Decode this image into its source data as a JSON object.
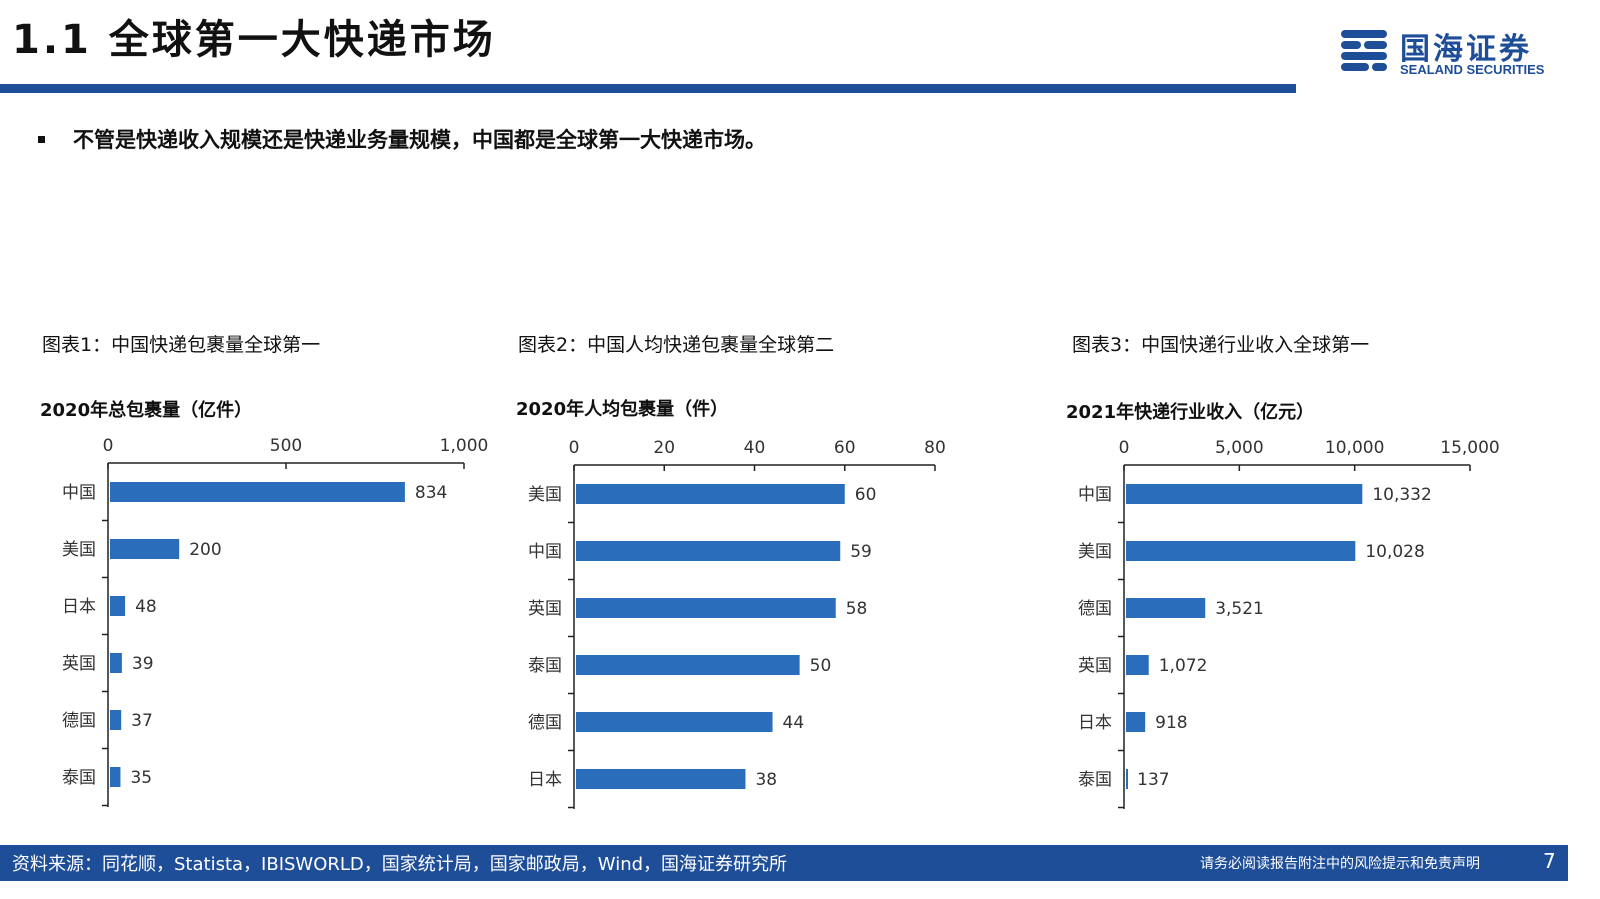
{
  "header": {
    "title": "1.1 全球第一大快递市场",
    "logo_cn": "国海证券",
    "logo_en": "SEALAND SECURITIES",
    "accent_color": "#1f4e98"
  },
  "bullet": "不管是快递收入规模还是快递业务量规模，中国都是全球第一大快递市场。",
  "chart_data": [
    {
      "type": "bar",
      "orientation": "horizontal",
      "caption": "图表1：中国快递包裹量全球第一",
      "title": "2020年总包裹量（亿件）",
      "categories": [
        "中国",
        "美国",
        "日本",
        "英国",
        "德国",
        "泰国"
      ],
      "values": [
        834,
        200,
        48,
        39,
        37,
        35
      ],
      "value_labels": [
        "834",
        "200",
        "48",
        "39",
        "37",
        "35"
      ],
      "xlim": [
        0,
        1000
      ],
      "ticks": [
        0,
        500,
        1000
      ],
      "tick_labels": [
        "0",
        "500",
        "1,000"
      ],
      "axis_position": "top",
      "bar_color": "#2a6ebb",
      "grid": false,
      "legend": "none"
    },
    {
      "type": "bar",
      "orientation": "horizontal",
      "caption": "图表2：中国人均快递包裹量全球第二",
      "title": "2020年人均包裹量（件）",
      "categories": [
        "美国",
        "中国",
        "英国",
        "泰国",
        "德国",
        "日本"
      ],
      "values": [
        60,
        59,
        58,
        50,
        44,
        38
      ],
      "value_labels": [
        "60",
        "59",
        "58",
        "50",
        "44",
        "38"
      ],
      "xlim": [
        0,
        80
      ],
      "ticks": [
        0,
        20,
        40,
        60,
        80
      ],
      "tick_labels": [
        "0",
        "20",
        "40",
        "60",
        "80"
      ],
      "axis_position": "top",
      "bar_color": "#2a6ebb",
      "grid": false,
      "legend": "none"
    },
    {
      "type": "bar",
      "orientation": "horizontal",
      "caption": "图表3：中国快递行业收入全球第一",
      "title": "2021年快递行业收入（亿元）",
      "categories": [
        "中国",
        "美国",
        "德国",
        "英国",
        "日本",
        "泰国"
      ],
      "values": [
        10332,
        10028,
        3521,
        1072,
        918,
        137
      ],
      "value_labels": [
        "10,332",
        "10,028",
        "3,521",
        "1,072",
        "918",
        "137"
      ],
      "xlim": [
        0,
        15000
      ],
      "ticks": [
        0,
        5000,
        10000,
        15000
      ],
      "tick_labels": [
        "0",
        "5,000",
        "10,000",
        "15,000"
      ],
      "axis_position": "top",
      "bar_color": "#2a6ebb",
      "grid": false,
      "legend": "none"
    }
  ],
  "footer": {
    "source": "资料来源：同花顺，Statista，IBISWORLD，国家统计局，国家邮政局，Wind，国海证券研究所",
    "disclaimer": "请务必阅读报告附注中的风险提示和免责声明",
    "page": "7"
  }
}
